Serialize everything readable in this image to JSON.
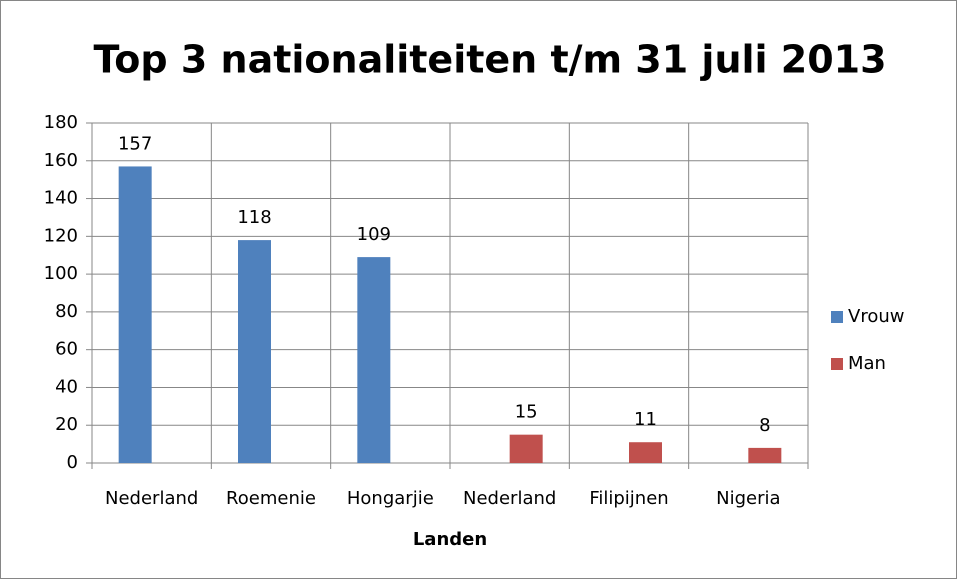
{
  "chart_data": {
    "type": "bar",
    "title": "Top 3 nationaliteiten t/m 31 juli 2013",
    "x_label": "Landen",
    "categories": [
      "Nederland",
      "Roemenie",
      "Hongarjie",
      "Nederland",
      "Filipijnen",
      "Nigeria"
    ],
    "series": [
      {
        "name": "Vrouw",
        "color": "#4f81bd",
        "values": [
          157,
          118,
          109,
          null,
          null,
          null
        ]
      },
      {
        "name": "Man",
        "color": "#c0504d",
        "values": [
          null,
          null,
          null,
          15,
          11,
          8
        ]
      }
    ],
    "ylim": [
      0,
      180
    ],
    "yticks": [
      0,
      20,
      40,
      60,
      80,
      100,
      120,
      140,
      160,
      180
    ],
    "grid": true,
    "data_labels": true,
    "legend": "right"
  }
}
